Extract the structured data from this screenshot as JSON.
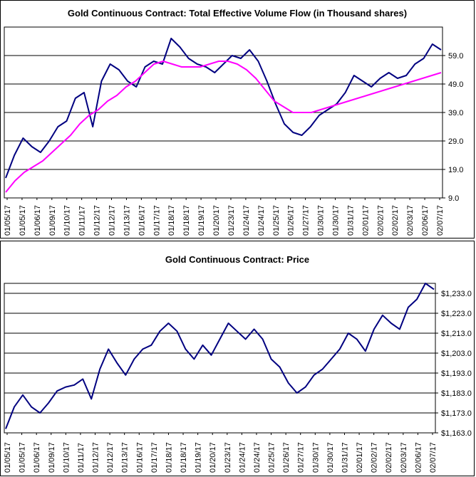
{
  "chart_data": [
    {
      "type": "line",
      "title": "Gold Continuous Contract: Total Effective Volume Flow (in Thousand shares)",
      "ylim": [
        9.0,
        69.0
      ],
      "y_ticks": [
        "59.0",
        "49.0",
        "39.0",
        "29.0",
        "19.0",
        "9.0"
      ],
      "x_tick_labels": [
        "01/05/17",
        "01/05/17",
        "01/06/17",
        "01/09/17",
        "01/10/17",
        "01/11/17",
        "01/12/17",
        "01/12/17",
        "01/13/17",
        "01/16/17",
        "01/17/17",
        "01/18/17",
        "01/18/17",
        "01/19/17",
        "01/20/17",
        "01/23/17",
        "01/24/17",
        "01/24/17",
        "01/25/17",
        "01/26/17",
        "01/27/17",
        "01/30/17",
        "01/30/17",
        "01/31/17",
        "02/01/17",
        "02/02/17",
        "02/02/17",
        "02/03/17",
        "02/06/17",
        "02/07/17"
      ],
      "grid": true,
      "series": [
        {
          "color": "#000080",
          "values": [
            16,
            24,
            30,
            27,
            25,
            29,
            34,
            36,
            44,
            46,
            34,
            50,
            56,
            54,
            50,
            48,
            55,
            57,
            56,
            65,
            62,
            58,
            56,
            55,
            53,
            56,
            59,
            58,
            61,
            57,
            50,
            42,
            35,
            32,
            31,
            34,
            38,
            40,
            42,
            46,
            52,
            50,
            48,
            51,
            53,
            51,
            52,
            56,
            58,
            63,
            61
          ]
        },
        {
          "color": "#ff00ff",
          "values": [
            11,
            15,
            18,
            20,
            22,
            25,
            28,
            31,
            35,
            38,
            40,
            43,
            45,
            48,
            50,
            53,
            56,
            57,
            56,
            55,
            55,
            55,
            56,
            57,
            57,
            56,
            54,
            51,
            47,
            43,
            41,
            39,
            39,
            39,
            40,
            41,
            42,
            43,
            44,
            45,
            46,
            47,
            48,
            49,
            50,
            51,
            52,
            53
          ]
        }
      ]
    },
    {
      "type": "line",
      "title": "Gold Continuous Contract: Price",
      "ylim": [
        1163.0,
        1238.0
      ],
      "y_ticks": [
        "$1,233.0",
        "$1,223.0",
        "$1,213.0",
        "$1,203.0",
        "$1,193.0",
        "$1,183.0",
        "$1,173.0",
        "$1,163.0"
      ],
      "x_tick_labels": [
        "01/05/17",
        "01/05/17",
        "01/06/17",
        "01/09/17",
        "01/10/17",
        "01/11/17",
        "01/12/17",
        "01/12/17",
        "01/13/17",
        "01/16/17",
        "01/17/17",
        "01/18/17",
        "01/18/17",
        "01/19/17",
        "01/20/17",
        "01/23/17",
        "01/24/17",
        "01/24/17",
        "01/25/17",
        "01/26/17",
        "01/27/17",
        "01/30/17",
        "01/30/17",
        "01/31/17",
        "02/01/17",
        "02/02/17",
        "02/02/17",
        "02/03/17",
        "02/06/17",
        "02/07/17"
      ],
      "grid": true,
      "series": [
        {
          "color": "#000080",
          "values": [
            1165,
            1176,
            1182,
            1176,
            1173,
            1178,
            1184,
            1186,
            1187,
            1190,
            1180,
            1195,
            1205,
            1198,
            1192,
            1200,
            1205,
            1207,
            1214,
            1218,
            1214,
            1205,
            1200,
            1207,
            1202,
            1210,
            1218,
            1214,
            1210,
            1215,
            1210,
            1200,
            1196,
            1188,
            1183,
            1186,
            1192,
            1195,
            1200,
            1205,
            1213,
            1210,
            1204,
            1215,
            1222,
            1218,
            1215,
            1226,
            1230,
            1238,
            1235
          ]
        }
      ]
    }
  ]
}
